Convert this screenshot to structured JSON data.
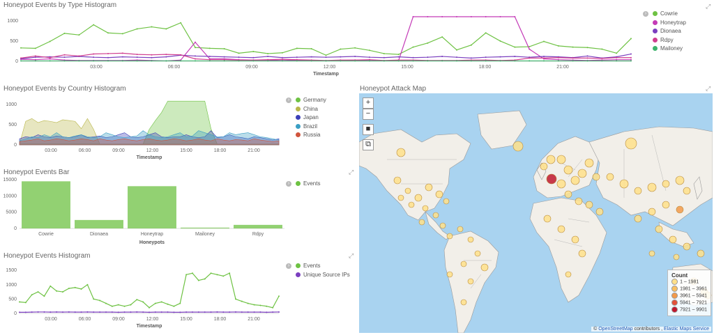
{
  "type_histogram": {
    "title": "Honeypot Events by Type Histogram",
    "xlabel": "Timestamp",
    "y_ticks": [
      "1000",
      "500",
      "0"
    ],
    "x_ticks": [
      "03:00",
      "06:00",
      "09:00",
      "12:00",
      "15:00",
      "18:00",
      "21:00"
    ],
    "legend": [
      {
        "label": "Cowrie",
        "color": "#6ec243"
      },
      {
        "label": "Honeytrap",
        "color": "#c43bb7"
      },
      {
        "label": "Dionaea",
        "color": "#7b3fbf"
      },
      {
        "label": "Rdpy",
        "color": "#d03d8f"
      },
      {
        "label": "Mailoney",
        "color": "#3cb36b"
      }
    ]
  },
  "country_histogram": {
    "title": "Honeypot Events by Country Histogram",
    "xlabel": "Timestamp",
    "y_ticks": [
      "1000",
      "500",
      "0"
    ],
    "x_ticks": [
      "03:00",
      "06:00",
      "09:00",
      "12:00",
      "15:00",
      "18:00",
      "21:00"
    ],
    "legend": [
      {
        "label": "Germany",
        "color": "#6ec243"
      },
      {
        "label": "China",
        "color": "#b9b64a"
      },
      {
        "label": "Japan",
        "color": "#3b3fb8"
      },
      {
        "label": "Brazil",
        "color": "#3a9fc4"
      },
      {
        "label": "Russia",
        "color": "#d0553d"
      }
    ]
  },
  "events_bar": {
    "title": "Honeypot Events Bar",
    "xlabel": "Honeypots",
    "y_ticks": [
      "15000",
      "10000",
      "5000",
      "0"
    ],
    "legend": [
      {
        "label": "Events",
        "color": "#6ec243"
      }
    ]
  },
  "events_histogram": {
    "title": "Honeypot Events Histogram",
    "xlabel": "Timestamp",
    "y_ticks": [
      "1500",
      "1000",
      "500",
      "0"
    ],
    "x_ticks": [
      "03:00",
      "06:00",
      "09:00",
      "12:00",
      "15:00",
      "18:00",
      "21:00"
    ],
    "legend": [
      {
        "label": "Events",
        "color": "#6ec243"
      },
      {
        "label": "Unique Source IPs",
        "color": "#7b3fbf"
      }
    ]
  },
  "attack_map": {
    "title": "Honeypot Attack Map",
    "zoom_in": "+",
    "zoom_out": "−",
    "legend_title": "Count",
    "legend": [
      {
        "label": "1 – 1981",
        "color": "#ffe08a"
      },
      {
        "label": "1981 – 3961",
        "color": "#f9c062"
      },
      {
        "label": "3961 – 5941",
        "color": "#f39a4a"
      },
      {
        "label": "5941 – 7921",
        "color": "#e2513a"
      },
      {
        "label": "7921 – 9901",
        "color": "#c0172e"
      }
    ],
    "attribution_prefix": "©",
    "attribution_osm": "OpenStreetMap",
    "attribution_mid": "contributors ,",
    "attribution_ems": "Elastic Maps Service"
  },
  "chart_data": [
    {
      "type": "line",
      "title": "Honeypot Events by Type Histogram",
      "xlabel": "Timestamp",
      "x_ticks": [
        "03:00",
        "06:00",
        "09:00",
        "12:00",
        "15:00",
        "18:00",
        "21:00"
      ],
      "ylim": [
        0,
        1100
      ],
      "series": [
        {
          "name": "Cowrie",
          "values": [
            330,
            320,
            490,
            690,
            650,
            900,
            700,
            680,
            800,
            850,
            800,
            950,
            340,
            320,
            310,
            200,
            240,
            190,
            210,
            320,
            310,
            150,
            300,
            330,
            270,
            190,
            170,
            350,
            450,
            600,
            280,
            400,
            700,
            500,
            350,
            360,
            490,
            380,
            350,
            340,
            300,
            200,
            560
          ]
        },
        {
          "name": "Honeytrap",
          "values": [
            50,
            40,
            60,
            30,
            20,
            20,
            20,
            20,
            30,
            20,
            10,
            30,
            470,
            60,
            60,
            40,
            30,
            30,
            20,
            30,
            20,
            10,
            20,
            30,
            20,
            10,
            20,
            1100,
            1100,
            1100,
            1100,
            1100,
            1100,
            1100,
            1100,
            300,
            60,
            40,
            30,
            20,
            30,
            40,
            40
          ]
        },
        {
          "name": "Dionaea",
          "values": [
            60,
            100,
            110,
            100,
            120,
            100,
            90,
            110,
            100,
            90,
            110,
            150,
            130,
            120,
            110,
            100,
            90,
            120,
            90,
            100,
            110,
            100,
            110,
            120,
            100,
            90,
            110,
            90,
            100,
            120,
            100,
            80,
            100,
            110,
            120,
            100,
            120,
            110,
            90,
            130,
            80,
            110,
            180
          ]
        },
        {
          "name": "Rdpy",
          "values": [
            80,
            130,
            90,
            160,
            130,
            180,
            190,
            200,
            170,
            160,
            170,
            160,
            60,
            40,
            40,
            30,
            30,
            40,
            50,
            40,
            30,
            20,
            30,
            30,
            40,
            20,
            30,
            30,
            20,
            20,
            20,
            30,
            30,
            20,
            30,
            80,
            80,
            90,
            80,
            80,
            70,
            90,
            90
          ]
        },
        {
          "name": "Mailoney",
          "values": [
            10,
            10,
            10,
            10,
            10,
            10,
            10,
            10,
            10,
            10,
            10,
            10,
            10,
            10,
            10,
            10,
            10,
            10,
            10,
            10,
            10,
            10,
            10,
            10,
            10,
            10,
            10,
            10,
            10,
            10,
            10,
            10,
            10,
            10,
            10,
            10,
            10,
            10,
            10,
            10,
            10,
            10,
            10
          ]
        }
      ]
    },
    {
      "type": "area",
      "title": "Honeypot Events by Country Histogram",
      "xlabel": "Timestamp",
      "x_ticks": [
        "03:00",
        "06:00",
        "09:00",
        "12:00",
        "15:00",
        "18:00",
        "21:00"
      ],
      "ylim": [
        0,
        1100
      ],
      "series": [
        {
          "name": "Germany",
          "values": [
            20,
            20,
            20,
            20,
            20,
            20,
            20,
            20,
            20,
            20,
            20,
            20,
            20,
            20,
            20,
            20,
            20,
            20,
            20,
            20,
            20,
            380,
            600,
            800,
            1080,
            1080,
            1080,
            1080,
            1080,
            1080,
            1080,
            400,
            20,
            20,
            20,
            20,
            20,
            20,
            20,
            20,
            20,
            20,
            20
          ]
        },
        {
          "name": "China",
          "values": [
            20,
            580,
            650,
            550,
            600,
            580,
            550,
            620,
            600,
            580,
            400,
            650,
            380,
            20,
            20,
            20,
            20,
            20,
            20,
            20,
            20,
            20,
            20,
            20,
            20,
            20,
            20,
            20,
            20,
            20,
            20,
            20,
            20,
            20,
            20,
            20,
            20,
            20,
            20,
            20,
            20,
            20,
            20
          ]
        },
        {
          "name": "Japan",
          "values": [
            150,
            200,
            180,
            250,
            200,
            180,
            220,
            200,
            180,
            200,
            250,
            180,
            200,
            220,
            180,
            200,
            250,
            300,
            200,
            180,
            200,
            250,
            300,
            200,
            180,
            200,
            200,
            250,
            200,
            180,
            200,
            350,
            180,
            200,
            250,
            200,
            180,
            150,
            200,
            180,
            150,
            120,
            150
          ]
        },
        {
          "name": "Brazil",
          "values": [
            100,
            150,
            200,
            180,
            250,
            200,
            300,
            200,
            180,
            220,
            250,
            200,
            180,
            200,
            300,
            250,
            200,
            180,
            200,
            220,
            350,
            250,
            200,
            180,
            200,
            250,
            300,
            200,
            220,
            350,
            300,
            250,
            200,
            200,
            300,
            250,
            280,
            300,
            250,
            200,
            180,
            150,
            120
          ]
        },
        {
          "name": "Russia",
          "values": [
            80,
            100,
            120,
            150,
            100,
            120,
            150,
            130,
            100,
            120,
            150,
            130,
            100,
            150,
            120,
            100,
            130,
            150,
            120,
            100,
            130,
            150,
            120,
            100,
            120,
            150,
            130,
            100,
            120,
            150,
            120,
            100,
            150,
            120,
            100,
            130,
            120,
            100,
            150,
            120,
            100,
            80,
            100
          ]
        }
      ]
    },
    {
      "type": "bar",
      "title": "Honeypot Events Bar",
      "xlabel": "Honeypots",
      "categories": [
        "Cowrie",
        "Dionaea",
        "Honeytrap",
        "Mailoney",
        "Rdpy"
      ],
      "series": [
        {
          "name": "Events",
          "values": [
            14500,
            2600,
            13000,
            250,
            1100
          ]
        }
      ],
      "ylim": [
        0,
        15000
      ]
    },
    {
      "type": "line",
      "title": "Honeypot Events Histogram",
      "xlabel": "Timestamp",
      "x_ticks": [
        "03:00",
        "06:00",
        "09:00",
        "12:00",
        "15:00",
        "18:00",
        "21:00"
      ],
      "ylim": [
        0,
        1600
      ],
      "series": [
        {
          "name": "Events",
          "values": [
            400,
            380,
            650,
            750,
            600,
            950,
            780,
            750,
            870,
            900,
            850,
            1000,
            500,
            450,
            350,
            250,
            300,
            250,
            300,
            480,
            400,
            200,
            350,
            400,
            320,
            250,
            350,
            1350,
            1400,
            1150,
            1200,
            1400,
            1350,
            1300,
            1400,
            500,
            420,
            350,
            300,
            280,
            250,
            200,
            600
          ]
        },
        {
          "name": "Unique Source IPs",
          "values": [
            40,
            40,
            45,
            50,
            50,
            45,
            50,
            45,
            50,
            45,
            45,
            50,
            45,
            45,
            45,
            45,
            40,
            45,
            45,
            50,
            45,
            40,
            45,
            45,
            45,
            40,
            40,
            45,
            45,
            45,
            45,
            45,
            50,
            45,
            45,
            50,
            45,
            45,
            45,
            45,
            40,
            45,
            50
          ]
        }
      ]
    }
  ]
}
